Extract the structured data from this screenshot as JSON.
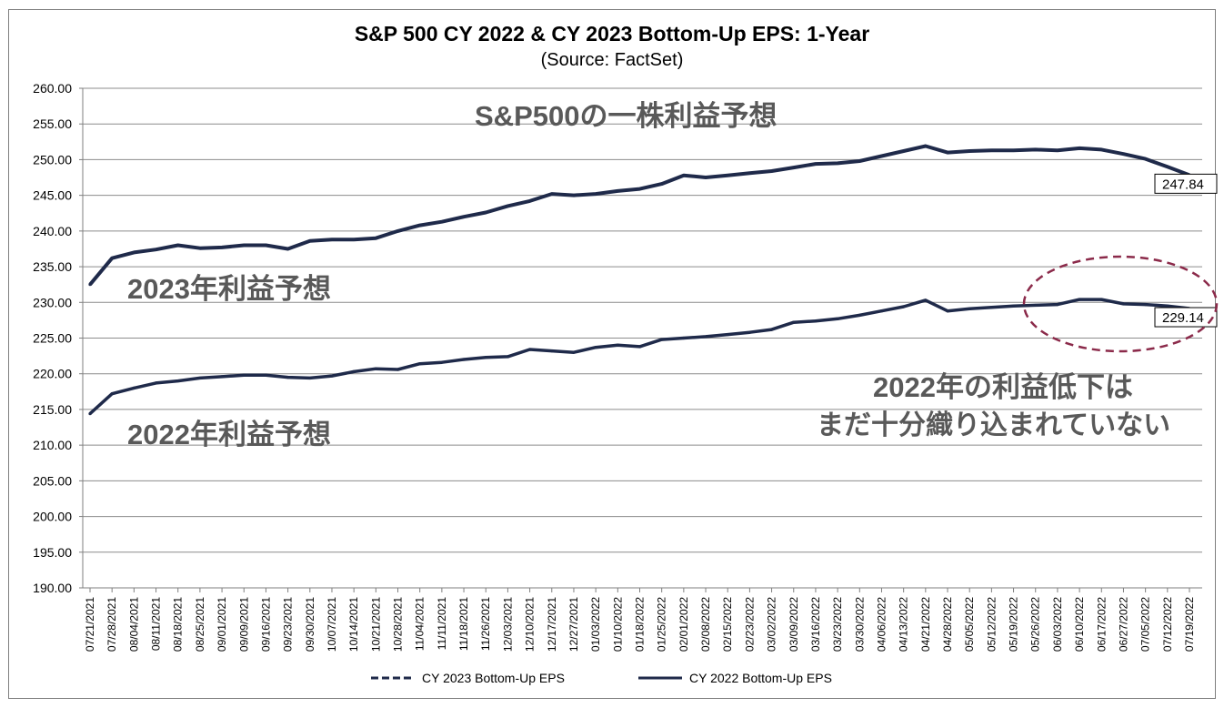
{
  "chart_data": {
    "type": "line",
    "title": "S&P 500 CY 2022 & CY 2023 Bottom-Up EPS: 1-Year",
    "subtitle": "(Source: FactSet)",
    "xlabel": "",
    "ylabel": "",
    "ylim": [
      190,
      260
    ],
    "y_ticks": [
      "260.00",
      "255.00",
      "250.00",
      "245.00",
      "240.00",
      "235.00",
      "230.00",
      "225.00",
      "220.00",
      "215.00",
      "210.00",
      "205.00",
      "200.00",
      "195.00",
      "190.00"
    ],
    "x_ticks": [
      "07/21/2021",
      "07/28/2021",
      "08/04/2021",
      "08/11/2021",
      "08/18/2021",
      "08/25/2021",
      "09/01/2021",
      "09/09/2021",
      "09/16/2021",
      "09/23/2021",
      "09/30/2021",
      "10/07/2021",
      "10/14/2021",
      "10/21/2021",
      "10/28/2021",
      "11/04/2021",
      "11/11/2021",
      "11/18/2021",
      "11/26/2021",
      "12/03/2021",
      "12/10/2021",
      "12/17/2021",
      "12/27/2021",
      "01/03/2022",
      "01/10/2022",
      "01/18/2022",
      "01/25/2022",
      "02/01/2022",
      "02/08/2022",
      "02/15/2022",
      "02/23/2022",
      "03/02/2022",
      "03/09/2022",
      "03/16/2022",
      "03/23/2022",
      "03/30/2022",
      "04/06/2022",
      "04/13/2022",
      "04/21/2022",
      "04/28/2022",
      "05/05/2022",
      "05/12/2022",
      "05/19/2022",
      "05/26/2022",
      "06/03/2022",
      "06/10/2022",
      "06/17/2022",
      "06/27/2022",
      "07/05/2022",
      "07/12/2022",
      "07/19/2022"
    ],
    "grid": true,
    "legend_position": "bottom",
    "series": [
      {
        "name": "CY 2023 Bottom-Up EPS",
        "style": "dashed",
        "color": "#1f2a4a",
        "end_label": "247.84",
        "values": [
          232.5,
          236.2,
          237.0,
          237.4,
          238.0,
          237.6,
          237.7,
          238.0,
          238.0,
          237.5,
          238.6,
          238.8,
          238.8,
          239.0,
          240.0,
          240.8,
          241.3,
          242.0,
          242.6,
          243.5,
          244.2,
          245.2,
          245.0,
          245.2,
          245.6,
          245.9,
          246.6,
          247.8,
          247.5,
          247.8,
          248.1,
          248.4,
          248.9,
          249.4,
          249.5,
          249.8,
          250.5,
          251.2,
          251.9,
          251.0,
          251.2,
          251.3,
          251.3,
          251.4,
          251.3,
          251.6,
          251.4,
          250.8,
          250.1,
          249.0,
          247.84
        ]
      },
      {
        "name": "CY 2022 Bottom-Up EPS",
        "style": "solid",
        "color": "#1f2a4a",
        "end_label": "229.14",
        "values": [
          214.4,
          217.2,
          218.0,
          218.7,
          219.0,
          219.4,
          219.6,
          219.8,
          219.8,
          219.5,
          219.4,
          219.7,
          220.3,
          220.7,
          220.6,
          221.4,
          221.6,
          222.0,
          222.3,
          222.4,
          223.4,
          223.2,
          223.0,
          223.7,
          224.0,
          223.8,
          224.8,
          225.0,
          225.2,
          225.5,
          225.8,
          226.2,
          227.2,
          227.4,
          227.7,
          228.2,
          228.8,
          229.4,
          230.3,
          228.8,
          229.1,
          229.3,
          229.5,
          229.6,
          229.7,
          230.4,
          230.4,
          229.8,
          229.7,
          229.5,
          229.14
        ]
      }
    ],
    "annotations": [
      {
        "text": "S&P500の一株利益予想"
      },
      {
        "text": "2023年利益予想"
      },
      {
        "text": "2022年利益予想"
      },
      {
        "text": "2022年の利益低下は"
      },
      {
        "text": "まだ十分織り込まれていない"
      }
    ],
    "highlight_color": "#8b2a4a",
    "axis_color": "#7f7f7f"
  }
}
